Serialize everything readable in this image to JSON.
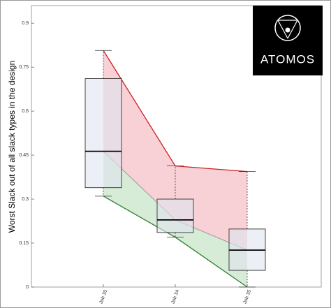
{
  "chart_data": {
    "type": "box",
    "y_label": "Worst Slack out of all slack types in the design",
    "categories": [
      "Job 30",
      "Job 34",
      "Job 35"
    ],
    "boxes": [
      {
        "min": 0.31,
        "q1": 0.339,
        "median": 0.463,
        "q3": 0.711,
        "max": 0.807
      },
      {
        "min": 0.17,
        "q1": 0.186,
        "median": 0.229,
        "q3": 0.3,
        "max": 0.413
      },
      {
        "min": 0,
        "q1": 0.057,
        "median": 0.126,
        "q3": 0.198,
        "max": 0.394
      }
    ],
    "ylim": [
      0,
      0.96
    ],
    "yticks": [
      0,
      0.15,
      0.3,
      0.45,
      0.6,
      0.75,
      0.9
    ],
    "max_color": "#cc2020",
    "min_color": "#2e7d32",
    "upper_fill": "#f5c6cc",
    "lower_fill": "#d3ead2",
    "box_fill": "#dfe4ee"
  },
  "logo": {
    "text": "ATOMOS"
  }
}
